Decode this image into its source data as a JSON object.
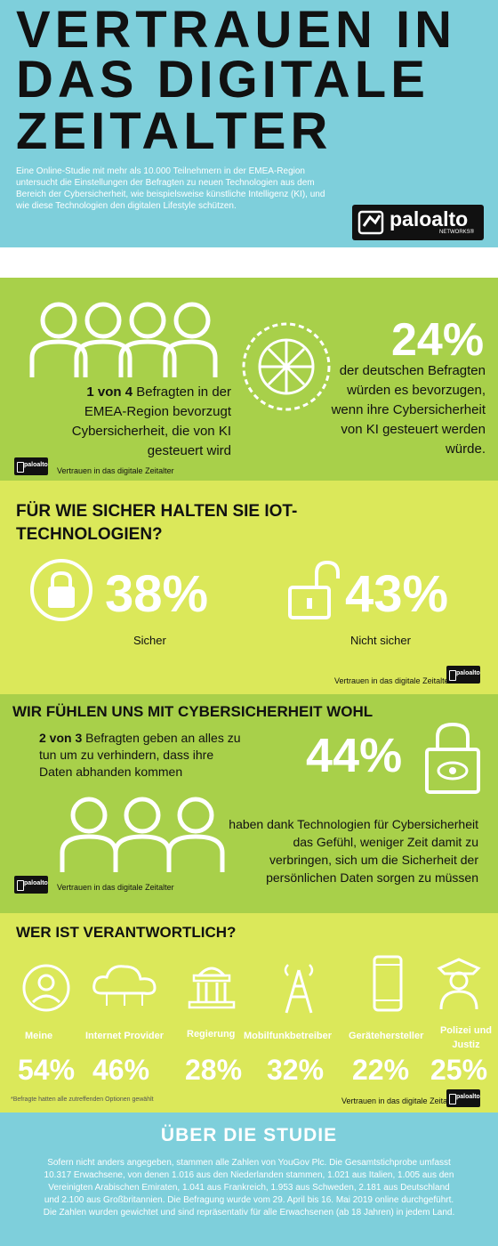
{
  "header": {
    "title_line1": "VERTRAUEN IN",
    "title_line2": "DAS DIGITALE",
    "title_line3": "ZEITALTER",
    "intro": "Eine Online-Studie mit mehr als 10.000 Teilnehmern in der EMEA-Region untersucht die Einstellungen der Befragten zu neuen Technologien aus dem Bereich der Cybersicherheit, wie beispielsweise künstliche Intelligenz (KI), und wie diese Technologien den digitalen Lifestyle schützen.",
    "logo_text": "paloalto",
    "logo_sub": "NETWORKS®"
  },
  "ai_section": {
    "stat_bold": "1 von 4",
    "stat_text": " Befragten in der EMEA-Region bevorzugt Cybersicherheit, die von KI gesteuert wird",
    "percent": "24%",
    "percent_text": "der deutschen Befragten würden es bevorzugen, wenn ihre Cybersicherheit von KI gesteuert werden würde.",
    "footer_tag": "Vertrauen in das digitale Zeitalter"
  },
  "iot_section": {
    "heading": "FÜR WIE SICHER HALTEN SIE IOT-TECHNOLOGIEN?",
    "secure_percent": "38%",
    "secure_label": "Sicher",
    "unsecure_percent": "43%",
    "unsecure_label": "Nicht sicher",
    "footer_tag": "Vertrauen in das digitale Zeitalter"
  },
  "comfort_section": {
    "heading": "WIR FÜHLEN UNS MIT CYBERSICHERHEIT WOHL",
    "stat_bold": "2 von 3",
    "stat_text": " Befragten geben an alles zu tun um zu verhindern, dass ihre Daten abhanden kommen",
    "percent": "44%",
    "percent_text": "haben dank Technologien für Cybersicherheit das Gefühl, weniger Zeit damit zu verbringen, sich um die Sicherheit der persönlichen Daten sorgen zu müssen",
    "footer_tag": "Vertrauen in das digitale Zeitalter"
  },
  "responsibility_section": {
    "heading": "WER IST VERANTWORTLICH?",
    "items": [
      {
        "label": "Meine",
        "value": "54%",
        "icon": "person-icon"
      },
      {
        "label": "Internet Provider",
        "value": "46%",
        "icon": "cloud-icon"
      },
      {
        "label": "Regierung",
        "value": "28%",
        "icon": "government-building-icon"
      },
      {
        "label": "Mobilfunkbetreiber",
        "value": "32%",
        "icon": "cell-tower-icon"
      },
      {
        "label": "Gerätehersteller",
        "value": "22%",
        "icon": "smartphone-icon"
      },
      {
        "label": "Polizei und Justiz",
        "value": "25%",
        "icon": "police-officer-icon"
      }
    ],
    "footnote": "*Befragte hatten alle zutreffenden Optionen gewählt",
    "footer_tag": "Vertrauen in das digitale Zeitalter"
  },
  "study_section": {
    "heading": "ÜBER DIE STUDIE",
    "text": "Sofern nicht anders angegeben, stammen alle Zahlen von YouGov Plc. Die Gesamtstichprobe umfasst 10.317 Erwachsene, von denen 1.016 aus den Niederlanden stammen, 1.021 aus Italien, 1.005 aus den Vereinigten Arabischen Emiraten, 1.041 aus Frankreich, 1.953 aus Schweden, 2.181 aus Deutschland und 2.100 aus Großbritannien. Die Befragung wurde vom 29. April bis 16. Mai 2019 online durchgeführt.  Die Zahlen wurden gewichtet und sind repräsentativ für alle Erwachsenen (ab 18 Jahren) in jedem Land."
  },
  "colors": {
    "header_bg": "#7ecfdb",
    "green": "#a8d04a",
    "lime": "#dbe85a",
    "study_bg": "#7ecfdb",
    "dark": "#111111"
  }
}
